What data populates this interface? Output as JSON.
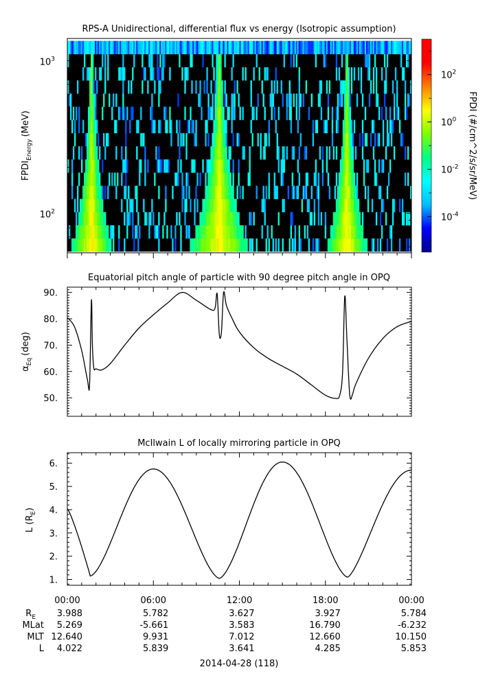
{
  "chart_data": [
    {
      "type": "heatmap",
      "title": "RPS-A Unidirectional, differential flux vs energy (Isotropic assumption)",
      "ylabel_main": "FPDI",
      "ylabel_sub": "Energy",
      "ylabel_unit": "(MeV)",
      "yscale": "log",
      "ylim": [
        55,
        1400
      ],
      "yticks": [
        {
          "value": 100,
          "base": "10",
          "exp": "2"
        },
        {
          "value": 1000,
          "base": "10",
          "exp": "3"
        }
      ],
      "xlim_hours": [
        0,
        24
      ],
      "colorbar": {
        "label": "FPDI (#/cm^2/s/sr/MeV)",
        "scale": "log",
        "range_exp": [
          -5.5,
          3.5
        ],
        "ticks": [
          {
            "exp": 2,
            "label": "10",
            "sup": "2"
          },
          {
            "exp": 0,
            "label": "10",
            "sup": "0"
          },
          {
            "exp": -2,
            "label": "10",
            "sup": "-2"
          },
          {
            "exp": -4,
            "label": "10",
            "sup": "-4"
          }
        ],
        "colors": [
          "#00008f",
          "#0000ff",
          "#00bfff",
          "#00ffff",
          "#00ff7f",
          "#7fff00",
          "#ffff00",
          "#ff7f00",
          "#ff0000",
          "#ff0000"
        ]
      },
      "belt_crossings_hours": [
        1.7,
        10.6,
        19.5
      ],
      "energy_bins_count": 16
    },
    {
      "type": "line",
      "title": "Equatorial pitch angle of particle with 90 degree pitch angle in OPQ",
      "ylabel": "αEq (deg)",
      "ylabel_main": "α",
      "ylabel_sub": "Eq",
      "ylabel_unit": "(deg)",
      "ylim": [
        43,
        92
      ],
      "yticks": [
        {
          "value": 50,
          "label": "50."
        },
        {
          "value": 60,
          "label": "60."
        },
        {
          "value": 70,
          "label": "70."
        },
        {
          "value": 80,
          "label": "80."
        },
        {
          "value": 90,
          "label": "90."
        }
      ],
      "x_hours": [
        0,
        0.5,
        1.0,
        1.4,
        1.55,
        1.68,
        1.75,
        1.85,
        2.0,
        2.4,
        3,
        4,
        5,
        6,
        7,
        8,
        9,
        10,
        10.3,
        10.45,
        10.6,
        10.75,
        10.9,
        11.1,
        11.5,
        12,
        13,
        14,
        15,
        16,
        17,
        18,
        18.7,
        19.0,
        19.2,
        19.35,
        19.5,
        19.7,
        19.9,
        20.1,
        21,
        22,
        23,
        24
      ],
      "y": [
        80.5,
        77,
        68,
        57,
        55,
        87,
        70,
        61.3,
        61.0,
        60.6,
        63,
        70,
        76.5,
        81.5,
        86,
        90,
        87,
        83.5,
        84,
        89.5,
        74,
        75,
        90,
        85,
        80,
        75,
        69,
        65,
        62,
        59,
        55,
        51,
        49.8,
        51,
        60,
        88.5,
        72,
        51,
        51.5,
        55,
        65,
        72.5,
        77,
        79
      ]
    },
    {
      "type": "line",
      "title": "McIlwain L of locally mirroring particle in OPQ",
      "ylabel_main": "L (R",
      "ylabel_sub": "E",
      "ylabel_close": ")",
      "ylim": [
        0.75,
        6.45
      ],
      "yticks": [
        {
          "value": 1,
          "label": "1."
        },
        {
          "value": 2,
          "label": "2."
        },
        {
          "value": 3,
          "label": "3."
        },
        {
          "value": 4,
          "label": "4."
        },
        {
          "value": 5,
          "label": "5."
        },
        {
          "value": 6,
          "label": "6."
        }
      ],
      "minima": [
        [
          1.6,
          1.15
        ],
        [
          10.6,
          1.05
        ],
        [
          19.55,
          1.1
        ]
      ],
      "maxima": [
        [
          6.0,
          5.75
        ],
        [
          15.0,
          6.05
        ]
      ],
      "end_values": [
        4.05,
        5.7
      ]
    }
  ],
  "x_axis": {
    "tick_labels": [
      "00:00",
      "06:00",
      "12:00",
      "18:00",
      "00:00"
    ],
    "date_label": "2014-04-28 (118)"
  },
  "ephemeris": {
    "rows": [
      {
        "label": "R",
        "label_sub": "E",
        "values": [
          "3.988",
          "5.782",
          "3.627",
          "3.927",
          "5.784"
        ]
      },
      {
        "label": "MLat",
        "label_sub": "",
        "values": [
          "5.269",
          "-5.661",
          "3.583",
          "16.790",
          "-6.232"
        ]
      },
      {
        "label": "MLT",
        "label_sub": "",
        "values": [
          "12.640",
          "9.931",
          "7.012",
          "12.660",
          "10.150"
        ]
      },
      {
        "label": "L",
        "label_sub": "",
        "values": [
          "4.022",
          "5.839",
          "3.641",
          "4.285",
          "5.853"
        ]
      }
    ]
  }
}
